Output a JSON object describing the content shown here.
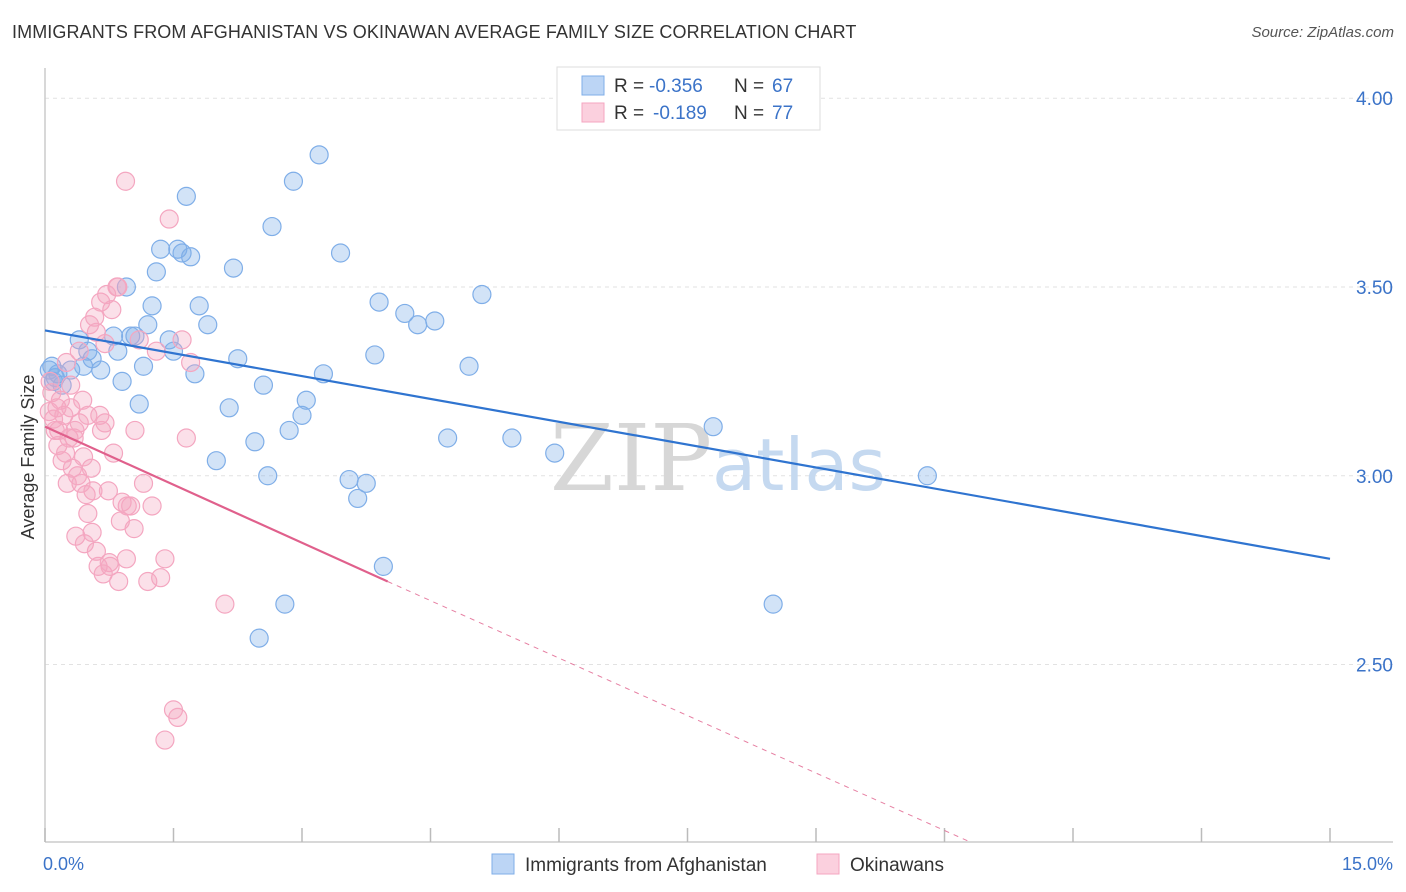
{
  "chart_data": {
    "type": "scatter",
    "title": "IMMIGRANTS FROM AFGHANISTAN VS OKINAWAN AVERAGE FAMILY SIZE CORRELATION CHART",
    "source": "Source: ZipAtlas.com",
    "xlabel": "",
    "ylabel": "Average Family Size",
    "xlim": [
      0,
      15
    ],
    "ylim": [
      2.03,
      4.08
    ],
    "x_tick_labels": [
      "0.0%",
      "15.0%"
    ],
    "y_ticks": [
      2.5,
      3.0,
      3.5,
      4.0
    ],
    "y_tick_labels": [
      "2.50",
      "3.00",
      "3.50",
      "4.00"
    ],
    "grid": true,
    "watermark": {
      "zip": "ZIP",
      "atlas": "atlas"
    },
    "legend": [
      {
        "r_label": "R =",
        "r_value": "-0.356",
        "n_label": "N =",
        "n_value": "67"
      },
      {
        "r_label": "R =",
        "r_value": "-0.189",
        "n_label": "N =",
        "n_value": "77"
      }
    ],
    "series": [
      {
        "name": "Immigrants from Afghanistan",
        "color": "#7faee8",
        "line_color": "#2f74d0",
        "trend": {
          "x0": 0.0,
          "y0": 3.385,
          "x1": 15.0,
          "y1": 2.78,
          "dashed_to": null
        },
        "points": [
          [
            0.05,
            3.28
          ],
          [
            0.1,
            3.25
          ],
          [
            0.15,
            3.27
          ],
          [
            0.2,
            3.24
          ],
          [
            0.12,
            3.26
          ],
          [
            0.08,
            3.29
          ],
          [
            0.3,
            3.28
          ],
          [
            0.4,
            3.36
          ],
          [
            0.45,
            3.29
          ],
          [
            0.5,
            3.33
          ],
          [
            0.55,
            3.31
          ],
          [
            0.65,
            3.28
          ],
          [
            0.8,
            3.37
          ],
          [
            0.85,
            3.33
          ],
          [
            0.9,
            3.25
          ],
          [
            0.95,
            3.5
          ],
          [
            1.0,
            3.37
          ],
          [
            1.1,
            3.19
          ],
          [
            1.15,
            3.29
          ],
          [
            1.2,
            3.4
          ],
          [
            1.25,
            3.45
          ],
          [
            1.3,
            3.54
          ],
          [
            1.35,
            3.6
          ],
          [
            1.45,
            3.36
          ],
          [
            1.5,
            3.33
          ],
          [
            1.55,
            3.6
          ],
          [
            1.6,
            3.59
          ],
          [
            1.65,
            3.74
          ],
          [
            1.7,
            3.58
          ],
          [
            1.75,
            3.27
          ],
          [
            1.8,
            3.45
          ],
          [
            1.9,
            3.4
          ],
          [
            2.0,
            3.04
          ],
          [
            2.15,
            3.18
          ],
          [
            2.2,
            3.55
          ],
          [
            2.25,
            3.31
          ],
          [
            2.45,
            3.09
          ],
          [
            2.5,
            2.57
          ],
          [
            2.55,
            3.24
          ],
          [
            2.6,
            3.0
          ],
          [
            2.65,
            3.66
          ],
          [
            2.8,
            2.66
          ],
          [
            2.85,
            3.12
          ],
          [
            2.9,
            3.78
          ],
          [
            3.0,
            3.16
          ],
          [
            3.05,
            3.2
          ],
          [
            3.2,
            3.85
          ],
          [
            3.25,
            3.27
          ],
          [
            3.45,
            3.59
          ],
          [
            3.55,
            2.99
          ],
          [
            3.65,
            2.94
          ],
          [
            3.75,
            2.98
          ],
          [
            3.85,
            3.32
          ],
          [
            3.9,
            3.46
          ],
          [
            3.95,
            2.76
          ],
          [
            4.2,
            3.43
          ],
          [
            4.35,
            3.4
          ],
          [
            4.55,
            3.41
          ],
          [
            4.7,
            3.1
          ],
          [
            4.95,
            3.29
          ],
          [
            5.1,
            3.48
          ],
          [
            5.45,
            3.1
          ],
          [
            5.95,
            3.06
          ],
          [
            7.8,
            3.13
          ],
          [
            8.5,
            2.66
          ],
          [
            10.3,
            3.0
          ],
          [
            1.05,
            3.37
          ]
        ]
      },
      {
        "name": "Okinawans",
        "color": "#f4a6c0",
        "line_color": "#e0608c",
        "trend": {
          "x0": 0.0,
          "y0": 3.13,
          "x1": 4.0,
          "y1": 2.72,
          "dashed_to": {
            "x": 10.8,
            "y": 2.03
          }
        },
        "points": [
          [
            0.05,
            3.17
          ],
          [
            0.08,
            3.22
          ],
          [
            0.1,
            3.15
          ],
          [
            0.12,
            3.12
          ],
          [
            0.15,
            3.08
          ],
          [
            0.18,
            3.2
          ],
          [
            0.2,
            3.04
          ],
          [
            0.22,
            3.16
          ],
          [
            0.25,
            3.3
          ],
          [
            0.28,
            3.1
          ],
          [
            0.3,
            3.18
          ],
          [
            0.32,
            3.02
          ],
          [
            0.35,
            3.12
          ],
          [
            0.38,
            3.0
          ],
          [
            0.4,
            3.14
          ],
          [
            0.42,
            2.98
          ],
          [
            0.45,
            3.05
          ],
          [
            0.48,
            2.95
          ],
          [
            0.5,
            2.9
          ],
          [
            0.52,
            3.4
          ],
          [
            0.55,
            2.85
          ],
          [
            0.58,
            3.42
          ],
          [
            0.6,
            2.8
          ],
          [
            0.62,
            2.76
          ],
          [
            0.65,
            3.46
          ],
          [
            0.68,
            2.74
          ],
          [
            0.7,
            3.35
          ],
          [
            0.72,
            3.48
          ],
          [
            0.75,
            2.77
          ],
          [
            0.78,
            3.44
          ],
          [
            0.8,
            3.06
          ],
          [
            0.85,
            3.5
          ],
          [
            0.88,
            2.88
          ],
          [
            0.9,
            2.93
          ],
          [
            0.95,
            2.78
          ],
          [
            1.0,
            2.92
          ],
          [
            1.05,
            3.12
          ],
          [
            1.1,
            3.36
          ],
          [
            1.15,
            2.98
          ],
          [
            1.2,
            2.72
          ],
          [
            1.25,
            2.92
          ],
          [
            1.3,
            3.33
          ],
          [
            1.35,
            2.73
          ],
          [
            1.4,
            2.78
          ],
          [
            1.45,
            3.68
          ],
          [
            1.5,
            2.38
          ],
          [
            1.55,
            2.36
          ],
          [
            1.6,
            3.36
          ],
          [
            1.65,
            3.1
          ],
          [
            1.7,
            3.3
          ],
          [
            0.06,
            3.25
          ],
          [
            0.14,
            3.18
          ],
          [
            0.24,
            3.06
          ],
          [
            0.34,
            3.1
          ],
          [
            0.44,
            3.2
          ],
          [
            0.54,
            3.02
          ],
          [
            0.64,
            3.16
          ],
          [
            0.74,
            2.96
          ],
          [
            0.84,
            3.5
          ],
          [
            0.94,
            3.78
          ],
          [
            1.04,
            2.86
          ],
          [
            0.16,
            3.12
          ],
          [
            0.26,
            2.98
          ],
          [
            0.36,
            2.84
          ],
          [
            0.46,
            2.82
          ],
          [
            0.56,
            2.96
          ],
          [
            0.66,
            3.12
          ],
          [
            0.76,
            2.76
          ],
          [
            0.86,
            2.72
          ],
          [
            0.96,
            2.92
          ],
          [
            2.1,
            2.66
          ],
          [
            0.3,
            3.24
          ],
          [
            0.4,
            3.33
          ],
          [
            0.5,
            3.16
          ],
          [
            0.6,
            3.38
          ],
          [
            0.7,
            3.14
          ],
          [
            1.4,
            2.3
          ]
        ]
      }
    ]
  }
}
